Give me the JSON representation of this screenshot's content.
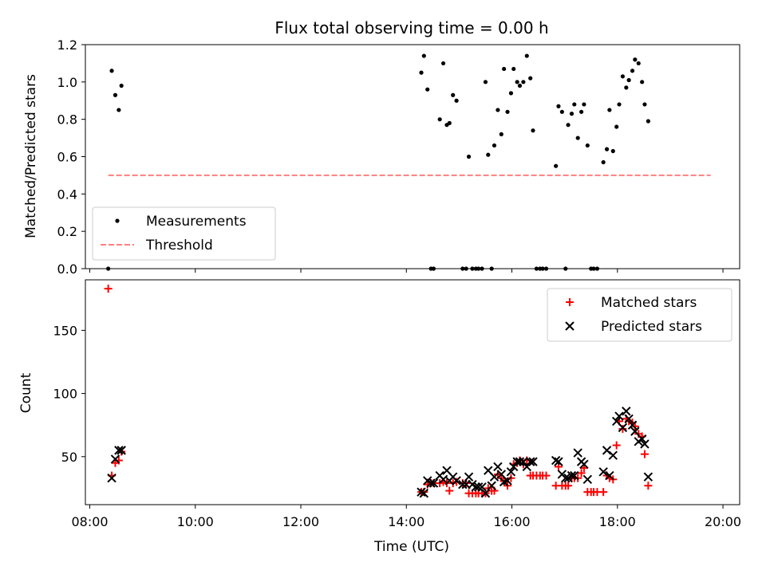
{
  "chart_data": [
    {
      "type": "scatter",
      "title": "Flux total observing time = 0.00 h",
      "ylabel": "Matched/Predicted stars",
      "xlabel": "",
      "xlim": [
        "07:55",
        "20:19"
      ],
      "ylim": [
        0,
        1.2
      ],
      "yticks": [
        "0.0",
        "0.2",
        "0.4",
        "0.6",
        "0.8",
        "1.0",
        "1.2"
      ],
      "legend": {
        "position": "lower-left",
        "entries": [
          "Measurements",
          "Threshold"
        ]
      },
      "threshold": {
        "name": "Threshold",
        "value": 0.5,
        "x_start": "08:21",
        "x_end": "19:46",
        "color": "#ff7f7f"
      },
      "series": [
        {
          "name": "Measurements",
          "color": "#000000",
          "points": [
            [
              "08:21",
              0.0
            ],
            [
              "08:25",
              1.06
            ],
            [
              "08:29",
              0.93
            ],
            [
              "08:33",
              0.85
            ],
            [
              "08:36",
              0.98
            ],
            [
              "14:17",
              1.05
            ],
            [
              "14:20",
              1.14
            ],
            [
              "14:24",
              0.96
            ],
            [
              "14:28",
              0.0
            ],
            [
              "14:31",
              0.0
            ],
            [
              "14:38",
              0.8
            ],
            [
              "14:42",
              1.1
            ],
            [
              "14:46",
              0.77
            ],
            [
              "14:49",
              0.78
            ],
            [
              "14:53",
              0.93
            ],
            [
              "14:57",
              0.9
            ],
            [
              "15:04",
              0.0
            ],
            [
              "15:08",
              0.0
            ],
            [
              "15:11",
              0.6
            ],
            [
              "15:15",
              0.0
            ],
            [
              "15:19",
              0.0
            ],
            [
              "15:22",
              0.0
            ],
            [
              "15:26",
              0.0
            ],
            [
              "15:30",
              1.0
            ],
            [
              "15:33",
              0.61
            ],
            [
              "15:37",
              0.0
            ],
            [
              "15:40",
              0.66
            ],
            [
              "15:44",
              0.85
            ],
            [
              "15:48",
              0.72
            ],
            [
              "15:51",
              1.07
            ],
            [
              "15:55",
              0.84
            ],
            [
              "15:59",
              0.94
            ],
            [
              "16:02",
              1.07
            ],
            [
              "16:06",
              1.0
            ],
            [
              "16:09",
              0.98
            ],
            [
              "16:13",
              1.0
            ],
            [
              "16:17",
              1.14
            ],
            [
              "16:21",
              1.02
            ],
            [
              "16:24",
              0.74
            ],
            [
              "16:28",
              0.0
            ],
            [
              "16:32",
              0.0
            ],
            [
              "16:35",
              0.0
            ],
            [
              "16:39",
              0.0
            ],
            [
              "16:50",
              0.55
            ],
            [
              "16:53",
              0.87
            ],
            [
              "16:57",
              0.84
            ],
            [
              "17:01",
              0.0
            ],
            [
              "17:04",
              0.77
            ],
            [
              "17:08",
              0.83
            ],
            [
              "17:11",
              0.88
            ],
            [
              "17:15",
              0.7
            ],
            [
              "17:19",
              0.84
            ],
            [
              "17:22",
              0.88
            ],
            [
              "17:26",
              0.66
            ],
            [
              "17:30",
              0.0
            ],
            [
              "17:33",
              0.0
            ],
            [
              "17:37",
              0.0
            ],
            [
              "17:44",
              0.57
            ],
            [
              "17:48",
              0.64
            ],
            [
              "17:51",
              0.85
            ],
            [
              "17:55",
              0.63
            ],
            [
              "17:59",
              0.76
            ],
            [
              "18:02",
              0.88
            ],
            [
              "18:06",
              1.03
            ],
            [
              "18:10",
              0.97
            ],
            [
              "18:13",
              1.01
            ],
            [
              "18:17",
              1.06
            ],
            [
              "18:20",
              1.12
            ],
            [
              "18:24",
              1.1
            ],
            [
              "18:28",
              1.0
            ],
            [
              "18:31",
              0.88
            ],
            [
              "18:35",
              0.79
            ]
          ]
        }
      ]
    },
    {
      "type": "scatter",
      "title": "",
      "xlabel": "Time (UTC)",
      "ylabel": "Count",
      "xlim": [
        "07:55",
        "20:19"
      ],
      "ylim": [
        12,
        190
      ],
      "xticks": [
        "08:00",
        "10:00",
        "12:00",
        "14:00",
        "16:00",
        "18:00",
        "20:00"
      ],
      "yticks": [
        "50",
        "100",
        "150"
      ],
      "legend": {
        "position": "top-right",
        "entries": [
          "Matched stars",
          "Predicted stars"
        ]
      },
      "series": [
        {
          "name": "Matched stars",
          "marker": "plus",
          "color": "#ff0000",
          "points": [
            [
              "08:21",
              183
            ],
            [
              "08:25",
              35
            ],
            [
              "08:29",
              45
            ],
            [
              "08:33",
              47
            ],
            [
              "08:36",
              54
            ],
            [
              "14:17",
              22
            ],
            [
              "14:20",
              22
            ],
            [
              "14:24",
              28
            ],
            [
              "14:28",
              29
            ],
            [
              "14:31",
              29
            ],
            [
              "14:38",
              29
            ],
            [
              "14:42",
              30
            ],
            [
              "14:46",
              29
            ],
            [
              "14:49",
              23
            ],
            [
              "14:53",
              29
            ],
            [
              "14:57",
              30
            ],
            [
              "15:04",
              29
            ],
            [
              "15:08",
              29
            ],
            [
              "15:11",
              21
            ],
            [
              "15:15",
              21
            ],
            [
              "15:19",
              21
            ],
            [
              "15:22",
              21
            ],
            [
              "15:26",
              21
            ],
            [
              "15:30",
              21
            ],
            [
              "15:33",
              25
            ],
            [
              "15:37",
              23
            ],
            [
              "15:40",
              23
            ],
            [
              "15:44",
              36
            ],
            [
              "15:48",
              33
            ],
            [
              "15:51",
              31
            ],
            [
              "15:55",
              27
            ],
            [
              "15:59",
              33
            ],
            [
              "16:02",
              44
            ],
            [
              "16:06",
              45
            ],
            [
              "16:09",
              47
            ],
            [
              "16:13",
              44
            ],
            [
              "16:17",
              47
            ],
            [
              "16:21",
              35
            ],
            [
              "16:24",
              35
            ],
            [
              "16:28",
              35
            ],
            [
              "16:32",
              35
            ],
            [
              "16:35",
              35
            ],
            [
              "16:39",
              35
            ],
            [
              "16:50",
              27
            ],
            [
              "16:53",
              42
            ],
            [
              "16:57",
              27
            ],
            [
              "17:01",
              27
            ],
            [
              "17:04",
              27
            ],
            [
              "17:08",
              33
            ],
            [
              "17:11",
              33
            ],
            [
              "17:15",
              33
            ],
            [
              "17:19",
              37
            ],
            [
              "17:22",
              41
            ],
            [
              "17:26",
              22
            ],
            [
              "17:30",
              22
            ],
            [
              "17:33",
              22
            ],
            [
              "17:37",
              22
            ],
            [
              "17:44",
              22
            ],
            [
              "17:48",
              35
            ],
            [
              "17:51",
              33
            ],
            [
              "17:55",
              32
            ],
            [
              "17:59",
              59
            ],
            [
              "18:02",
              78
            ],
            [
              "18:06",
              72
            ],
            [
              "18:10",
              80
            ],
            [
              "18:13",
              78
            ],
            [
              "18:17",
              77
            ],
            [
              "18:20",
              74
            ],
            [
              "18:24",
              68
            ],
            [
              "18:28",
              66
            ],
            [
              "18:31",
              52
            ],
            [
              "18:35",
              27
            ]
          ]
        },
        {
          "name": "Predicted stars",
          "marker": "x",
          "color": "#000000",
          "points": [
            [
              "08:25",
              33
            ],
            [
              "08:29",
              48
            ],
            [
              "08:33",
              55
            ],
            [
              "08:36",
              55
            ],
            [
              "14:17",
              22
            ],
            [
              "14:20",
              21
            ],
            [
              "14:24",
              31
            ],
            [
              "14:28",
              29
            ],
            [
              "14:31",
              29
            ],
            [
              "14:38",
              35
            ],
            [
              "14:42",
              32
            ],
            [
              "14:46",
              39
            ],
            [
              "14:49",
              31
            ],
            [
              "14:53",
              34
            ],
            [
              "14:57",
              31
            ],
            [
              "15:04",
              28
            ],
            [
              "15:08",
              28
            ],
            [
              "15:11",
              34
            ],
            [
              "15:15",
              28
            ],
            [
              "15:19",
              26
            ],
            [
              "15:22",
              26
            ],
            [
              "15:26",
              26
            ],
            [
              "15:30",
              21
            ],
            [
              "15:33",
              39
            ],
            [
              "15:37",
              27
            ],
            [
              "15:40",
              34
            ],
            [
              "15:44",
              42
            ],
            [
              "15:48",
              36
            ],
            [
              "15:51",
              30
            ],
            [
              "15:55",
              31
            ],
            [
              "15:59",
              38
            ],
            [
              "16:02",
              42
            ],
            [
              "16:06",
              46
            ],
            [
              "16:09",
              46
            ],
            [
              "16:13",
              46
            ],
            [
              "16:17",
              42
            ],
            [
              "16:21",
              46
            ],
            [
              "16:24",
              46
            ],
            [
              "16:50",
              47
            ],
            [
              "16:53",
              46
            ],
            [
              "16:57",
              36
            ],
            [
              "17:01",
              33
            ],
            [
              "17:04",
              33
            ],
            [
              "17:08",
              35
            ],
            [
              "17:11",
              35
            ],
            [
              "17:15",
              53
            ],
            [
              "17:19",
              46
            ],
            [
              "17:22",
              44
            ],
            [
              "17:26",
              32
            ],
            [
              "17:44",
              38
            ],
            [
              "17:48",
              55
            ],
            [
              "17:51",
              35
            ],
            [
              "17:55",
              51
            ],
            [
              "17:59",
              78
            ],
            [
              "18:02",
              82
            ],
            [
              "18:06",
              73
            ],
            [
              "18:10",
              86
            ],
            [
              "18:13",
              80
            ],
            [
              "18:17",
              75
            ],
            [
              "18:20",
              70
            ],
            [
              "18:24",
              62
            ],
            [
              "18:28",
              64
            ],
            [
              "18:31",
              60
            ],
            [
              "18:35",
              34
            ]
          ]
        }
      ]
    }
  ]
}
